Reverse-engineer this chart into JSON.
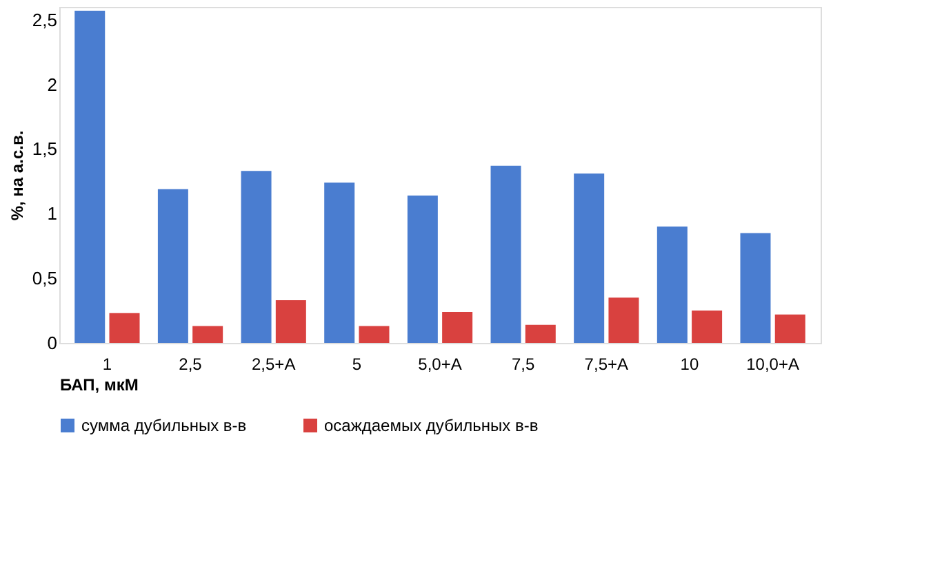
{
  "chart_data": {
    "type": "bar",
    "xlabel": "БАП, мкМ",
    "ylabel": "%, на а.с.в.",
    "categories": [
      "1",
      "2,5",
      "2,5+A",
      "5",
      "5,0+A",
      "7,5",
      "7,5+A",
      "10",
      "10,0+A"
    ],
    "series": [
      {
        "name": "сумма дубильных в-в",
        "color": "#4a7dd0",
        "values": [
          2.57,
          1.19,
          1.33,
          1.24,
          1.14,
          1.37,
          1.31,
          0.9,
          0.85
        ]
      },
      {
        "name": "осаждаемых дубильных в-в",
        "color": "#d9413f",
        "values": [
          0.23,
          0.13,
          0.33,
          0.13,
          0.24,
          0.14,
          0.35,
          0.25,
          0.22
        ]
      }
    ],
    "ylim": [
      0,
      2.6
    ],
    "yticks": [
      0,
      {
        "value": 0.5,
        "label": "0,5"
      },
      1,
      {
        "value": 1.5,
        "label": "1,5"
      },
      2,
      {
        "value": 2.5,
        "label": "2,5"
      }
    ],
    "grid": false,
    "legend": "bottom"
  }
}
